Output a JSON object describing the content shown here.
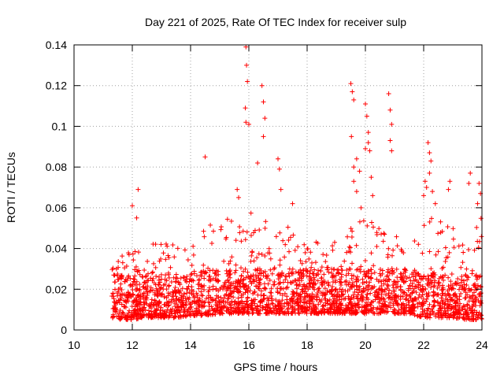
{
  "chart_data": {
    "type": "scatter",
    "title": "Day 221 of 2025, Rate Of TEC Index for receiver sulp",
    "xlabel": "GPS time / hours",
    "ylabel": "ROTI / TECUs",
    "xlim": [
      10,
      24
    ],
    "ylim": [
      0,
      0.14
    ],
    "xticks": [
      10,
      12,
      14,
      16,
      18,
      20,
      22,
      24
    ],
    "xtick_labels": [
      "10",
      "12",
      "14",
      "16",
      "18",
      "20",
      "22",
      "24"
    ],
    "yticks": [
      0,
      0.02,
      0.04,
      0.06,
      0.08,
      0.1,
      0.12,
      0.14
    ],
    "ytick_labels": [
      "0",
      "0.02",
      "0.04",
      "0.06",
      "0.08",
      "0.1",
      "0.12",
      "0.14"
    ],
    "grid": true,
    "marker": "+",
    "color": "#ff0000",
    "data_start_hour": 11.3,
    "data_end_hour": 24.0,
    "series": [
      {
        "name": "ROTI",
        "envelope": {
          "x": [
            11.3,
            11.5,
            12.0,
            12.5,
            13.0,
            13.5,
            14.0,
            14.5,
            15.0,
            15.5,
            16.0,
            16.5,
            17.0,
            17.5,
            18.0,
            18.5,
            19.0,
            19.5,
            20.0,
            20.5,
            21.0,
            21.5,
            22.0,
            22.5,
            23.0,
            23.5,
            24.0
          ],
          "typical_max": [
            0.03,
            0.035,
            0.04,
            0.042,
            0.044,
            0.045,
            0.045,
            0.05,
            0.055,
            0.055,
            0.06,
            0.06,
            0.055,
            0.05,
            0.045,
            0.045,
            0.045,
            0.05,
            0.055,
            0.05,
            0.05,
            0.045,
            0.055,
            0.055,
            0.05,
            0.045,
            0.06
          ],
          "typical_min": [
            0.005,
            0.005,
            0.005,
            0.006,
            0.006,
            0.006,
            0.007,
            0.007,
            0.008,
            0.008,
            0.008,
            0.008,
            0.008,
            0.008,
            0.008,
            0.008,
            0.008,
            0.008,
            0.008,
            0.008,
            0.008,
            0.008,
            0.006,
            0.006,
            0.006,
            0.005,
            0.005
          ]
        },
        "points": [
          [
            12.0,
            0.061
          ],
          [
            12.15,
            0.055
          ],
          [
            12.2,
            0.069
          ],
          [
            14.5,
            0.085
          ],
          [
            15.6,
            0.069
          ],
          [
            15.65,
            0.065
          ],
          [
            15.9,
            0.139
          ],
          [
            15.92,
            0.13
          ],
          [
            15.95,
            0.122
          ],
          [
            15.88,
            0.109
          ],
          [
            15.9,
            0.102
          ],
          [
            16.0,
            0.101
          ],
          [
            16.3,
            0.082
          ],
          [
            16.45,
            0.12
          ],
          [
            16.5,
            0.112
          ],
          [
            16.55,
            0.104
          ],
          [
            16.5,
            0.095
          ],
          [
            17.0,
            0.084
          ],
          [
            17.05,
            0.079
          ],
          [
            17.1,
            0.069
          ],
          [
            17.5,
            0.062
          ],
          [
            19.5,
            0.121
          ],
          [
            19.55,
            0.117
          ],
          [
            19.6,
            0.113
          ],
          [
            19.52,
            0.095
          ],
          [
            19.6,
            0.08
          ],
          [
            19.7,
            0.084
          ],
          [
            19.8,
            0.078
          ],
          [
            19.6,
            0.073
          ],
          [
            19.7,
            0.068
          ],
          [
            20.0,
            0.111
          ],
          [
            20.05,
            0.105
          ],
          [
            20.1,
            0.097
          ],
          [
            20.0,
            0.089
          ],
          [
            20.1,
            0.092
          ],
          [
            20.15,
            0.088
          ],
          [
            20.2,
            0.075
          ],
          [
            20.25,
            0.066
          ],
          [
            19.85,
            0.06
          ],
          [
            20.8,
            0.116
          ],
          [
            20.85,
            0.108
          ],
          [
            20.9,
            0.101
          ],
          [
            20.85,
            0.093
          ],
          [
            20.9,
            0.088
          ],
          [
            22.0,
            0.066
          ],
          [
            22.05,
            0.073
          ],
          [
            22.1,
            0.07
          ],
          [
            22.15,
            0.092
          ],
          [
            22.2,
            0.087
          ],
          [
            22.25,
            0.083
          ],
          [
            22.2,
            0.077
          ],
          [
            22.3,
            0.068
          ],
          [
            22.4,
            0.062
          ],
          [
            22.9,
            0.073
          ],
          [
            22.85,
            0.069
          ],
          [
            23.6,
            0.077
          ],
          [
            23.55,
            0.072
          ],
          [
            23.9,
            0.072
          ],
          [
            23.95,
            0.067
          ],
          [
            23.85,
            0.062
          ]
        ]
      }
    ]
  }
}
